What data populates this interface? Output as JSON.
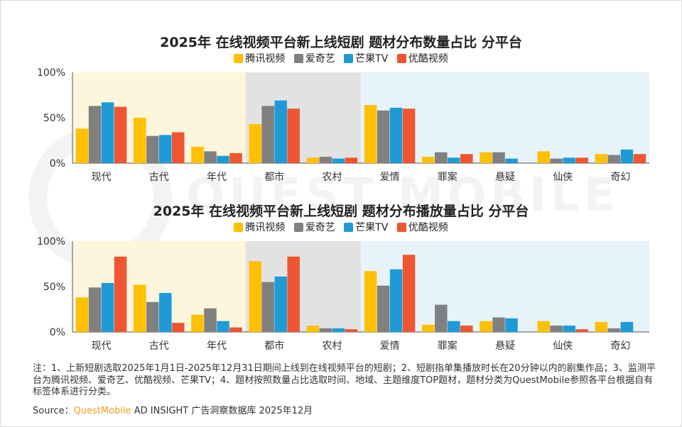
{
  "watermark": "QUEST MOBILE",
  "colors": {
    "tencent": "#ffc000",
    "iqiyi": "#808080",
    "mango": "#1e9bd7",
    "youku": "#ef5530",
    "band_yellow": "#fdf6dc",
    "band_gray": "#e2e2e2",
    "band_blue": "#e6f3fa"
  },
  "legend": [
    "腾讯视频",
    "爱奇艺",
    "芒果TV",
    "优酷视频"
  ],
  "chart_data": [
    {
      "type": "bar",
      "title": "2025年 在线视频平台新上线短剧 题材分布数量占比 分平台",
      "categories": [
        "现代",
        "古代",
        "年代",
        "都市",
        "农村",
        "爱情",
        "罪案",
        "悬疑",
        "仙侠",
        "奇幻"
      ],
      "yticks": [
        "100%",
        "50%",
        "0%"
      ],
      "ylim": [
        0,
        100
      ],
      "series": [
        {
          "name": "腾讯视频",
          "values": [
            38,
            50,
            18,
            43,
            6,
            64,
            7,
            12,
            13,
            10
          ]
        },
        {
          "name": "爱奇艺",
          "values": [
            63,
            30,
            13,
            63,
            7,
            58,
            12,
            12,
            5,
            9
          ]
        },
        {
          "name": "芒果TV",
          "values": [
            67,
            31,
            8,
            69,
            5,
            61,
            6,
            5,
            6,
            15
          ]
        },
        {
          "name": "优酷视频",
          "values": [
            62,
            34,
            11,
            60,
            6,
            60,
            10,
            0,
            6,
            10
          ]
        }
      ]
    },
    {
      "type": "bar",
      "title": "2025年 在线视频平台新上线短剧 题材分布播放量占比 分平台",
      "categories": [
        "现代",
        "古代",
        "年代",
        "都市",
        "农村",
        "爱情",
        "罪案",
        "悬疑",
        "仙侠",
        "奇幻"
      ],
      "yticks": [
        "100%",
        "50%",
        "0%"
      ],
      "ylim": [
        0,
        100
      ],
      "series": [
        {
          "name": "腾讯视频",
          "values": [
            38,
            52,
            19,
            78,
            7,
            67,
            8,
            12,
            12,
            11
          ]
        },
        {
          "name": "爱奇艺",
          "values": [
            49,
            33,
            26,
            55,
            4,
            51,
            30,
            16,
            7,
            4
          ]
        },
        {
          "name": "芒果TV",
          "values": [
            54,
            43,
            12,
            61,
            4,
            69,
            12,
            15,
            7,
            11
          ]
        },
        {
          "name": "优酷视频",
          "values": [
            83,
            10,
            5,
            83,
            3,
            85,
            7,
            0,
            3,
            0
          ]
        }
      ]
    }
  ],
  "notes": "注：1、上新短剧选取2025年1月1日-2025年12月31日期间上线到在线视频平台的短剧；2、短剧指单集播放时长在20分钟以内的剧集作品；3、监测平台为腾讯视频、爱奇艺、优酷视频、芒果TV；4、题材按照数量占比选取时间、地域、主题维度TOP题材，题材分类为QuestMobile参照各平台根据自有标签体系进行分类。",
  "source": {
    "prefix": "Source：",
    "brand": "QuestMobile",
    "rest": " AD INSIGHT 广告洞察数据库 2025年12月"
  }
}
